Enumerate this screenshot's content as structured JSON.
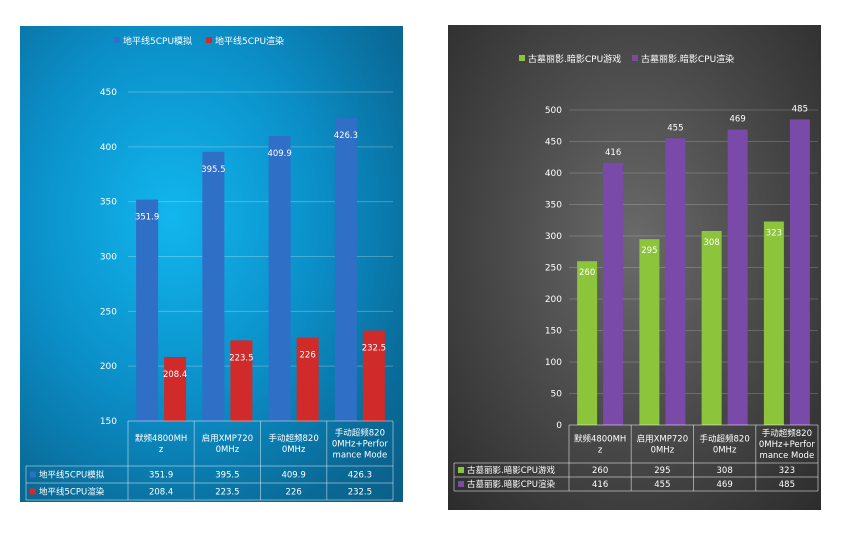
{
  "chart_data": [
    {
      "type": "bar",
      "categories": [
        "默频4800MHz",
        "启用XMP7200MHz",
        "手动超频8200MHz",
        "手动超频8200MHz+Performance Mode"
      ],
      "category_lines": [
        [
          "默频4800MH",
          "z"
        ],
        [
          "启用XMP720",
          "0MHz"
        ],
        [
          "手动超频820",
          "0MHz"
        ],
        [
          "手动超频820",
          "0MHz+Perfor",
          "mance Mode"
        ]
      ],
      "series": [
        {
          "name": "地平线5CPU模拟",
          "values": [
            351.9,
            395.5,
            409.9,
            426.3
          ],
          "labels": [
            "351.9",
            "395.5",
            "409.9",
            "426.3"
          ],
          "color": "#2f6fc6"
        },
        {
          "name": "地平线5CPU渲染",
          "values": [
            208.4,
            223.5,
            226,
            232.5
          ],
          "labels": [
            "208.4",
            "223.5",
            "226",
            "232.5"
          ],
          "color": "#d02a2a"
        }
      ],
      "ylim": [
        150,
        450
      ],
      "yticks": [
        "450",
        "400",
        "350",
        "300",
        "250",
        "200",
        "150"
      ],
      "ytick_values": [
        450,
        400,
        350,
        300,
        250,
        200,
        150
      ],
      "legend": "top",
      "data_table": true
    },
    {
      "type": "bar",
      "categories": [
        "默频4800MHz",
        "启用XMP7200MHz",
        "手动超频8200MHz",
        "手动超频8200MHz+Performance Mode"
      ],
      "category_lines": [
        [
          "默频4800MH",
          "z"
        ],
        [
          "启用XMP720",
          "0MHz"
        ],
        [
          "手动超频820",
          "0MHz"
        ],
        [
          "手动超频820",
          "0MHz+Perfor",
          "mance Mode"
        ]
      ],
      "series": [
        {
          "name": "古墓丽影.暗影CPU游戏",
          "values": [
            260,
            295,
            308,
            323
          ],
          "labels": [
            "260",
            "295",
            "308",
            "323"
          ],
          "color": "#8cc43c"
        },
        {
          "name": "古墓丽影.暗影CPU渲染",
          "values": [
            416,
            455,
            469,
            485
          ],
          "labels": [
            "416",
            "455",
            "469",
            "485"
          ],
          "color": "#7a4aa8"
        }
      ],
      "ylim": [
        0,
        500
      ],
      "yticks": [
        "500",
        "450",
        "400",
        "350",
        "300",
        "250",
        "200",
        "150",
        "100",
        "50",
        "0"
      ],
      "ytick_values": [
        500,
        450,
        400,
        350,
        300,
        250,
        200,
        150,
        100,
        50,
        0
      ],
      "legend": "top",
      "data_table": true
    }
  ]
}
